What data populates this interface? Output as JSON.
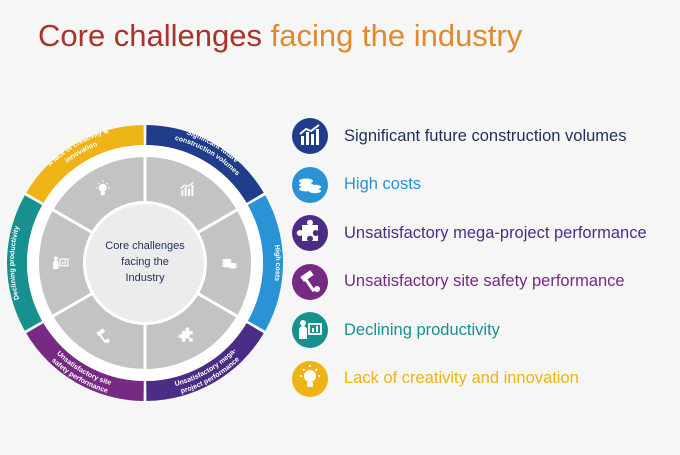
{
  "title": {
    "part1": "Core challenges",
    "part2": "facing the industry"
  },
  "wheel": {
    "center_label": [
      "Core challenges",
      "facing the",
      "Industry"
    ],
    "segments": [
      {
        "label": [
          "Significant future",
          "construction volumes"
        ],
        "color": "#1f3d8a",
        "icon": "bar-chart-icon"
      },
      {
        "label": [
          "High costs"
        ],
        "color": "#2a93d5",
        "icon": "coins-icon"
      },
      {
        "label": [
          "Unsatisfactory mega-",
          "project performance"
        ],
        "color": "#4b2d86",
        "icon": "puzzle-icon"
      },
      {
        "label": [
          "Unsatisfactory site",
          "safety performance"
        ],
        "color": "#762a83",
        "icon": "hammer-icon"
      },
      {
        "label": [
          "Declining productivity"
        ],
        "color": "#17908f",
        "icon": "presenter-icon"
      },
      {
        "label": [
          "A lack of creativity &",
          "innovation"
        ],
        "color": "#eeb314",
        "icon": "lightbulb-icon"
      }
    ]
  },
  "legend": [
    {
      "label": "Significant future construction volumes",
      "color": "#1f3d8a",
      "text_color": "#1f3058",
      "icon": "bar-chart-icon"
    },
    {
      "label": "High costs",
      "color": "#2a93d5",
      "text_color": "#2a93d5",
      "icon": "coins-icon"
    },
    {
      "label": "Unsatisfactory mega-project performance",
      "color": "#4b2d86",
      "text_color": "#4b2d86",
      "icon": "puzzle-icon"
    },
    {
      "label": "Unsatisfactory site safety performance",
      "color": "#762a83",
      "text_color": "#762a83",
      "icon": "hammer-icon"
    },
    {
      "label": "Declining productivity",
      "color": "#17908f",
      "text_color": "#17908f",
      "icon": "presenter-icon"
    },
    {
      "label": "Lack of creativity and innovation",
      "color": "#eeb314",
      "text_color": "#eeb314",
      "icon": "lightbulb-icon"
    }
  ]
}
